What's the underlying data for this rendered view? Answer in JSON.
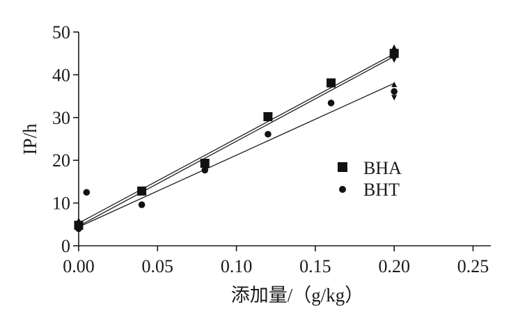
{
  "chart_data": {
    "type": "scatter",
    "xlabel": "添加量/（g/kg）",
    "ylabel": "IP/h",
    "xlim": [
      0,
      0.27
    ],
    "ylim": [
      0,
      50
    ],
    "xticks": [
      0.0,
      0.05,
      0.1,
      0.15,
      0.2,
      0.25
    ],
    "xtick_labels": [
      "0.00",
      "0.05",
      "0.10",
      "0.15",
      "0.20",
      "0.25"
    ],
    "yticks": [
      0,
      10,
      20,
      30,
      40,
      50
    ],
    "ytick_labels": [
      "0",
      "10",
      "20",
      "30",
      "40",
      "50"
    ],
    "legend_position": "right-middle",
    "series": [
      {
        "name": "BHA",
        "marker": "square",
        "x": [
          0.0,
          0.04,
          0.08,
          0.12,
          0.16,
          0.2
        ],
        "y": [
          4.8,
          12.8,
          19.3,
          30.2,
          38.1,
          45.0
        ],
        "fit": [
          {
            "x0": 0.0,
            "y0": 5.3,
            "x1": 0.2,
            "y1": 44.9
          },
          {
            "x0": 0.0,
            "y0": 4.6,
            "x1": 0.2,
            "y1": 44.3
          }
        ]
      },
      {
        "name": "BHT",
        "marker": "circle",
        "x": [
          0.0,
          0.005,
          0.04,
          0.08,
          0.12,
          0.16,
          0.2
        ],
        "y": [
          4.0,
          12.5,
          9.6,
          17.7,
          26.1,
          33.4,
          36.1
        ],
        "fit": [
          {
            "x0": 0.0,
            "y0": 4.4,
            "x1": 0.2,
            "y1": 38.0
          }
        ]
      }
    ],
    "end_arrows": [
      {
        "x": 0.2,
        "y": 46.3,
        "dir": "up"
      },
      {
        "x": 0.2,
        "y": 43.6,
        "dir": "down"
      },
      {
        "x": 0.2,
        "y": 37.6,
        "dir": "up"
      },
      {
        "x": 0.2,
        "y": 34.8,
        "dir": "down"
      },
      {
        "x": 0.0,
        "y": 5.8,
        "dir": "up"
      }
    ],
    "colors": {
      "axis": "#1a1a1a",
      "marker": "#111111"
    }
  }
}
